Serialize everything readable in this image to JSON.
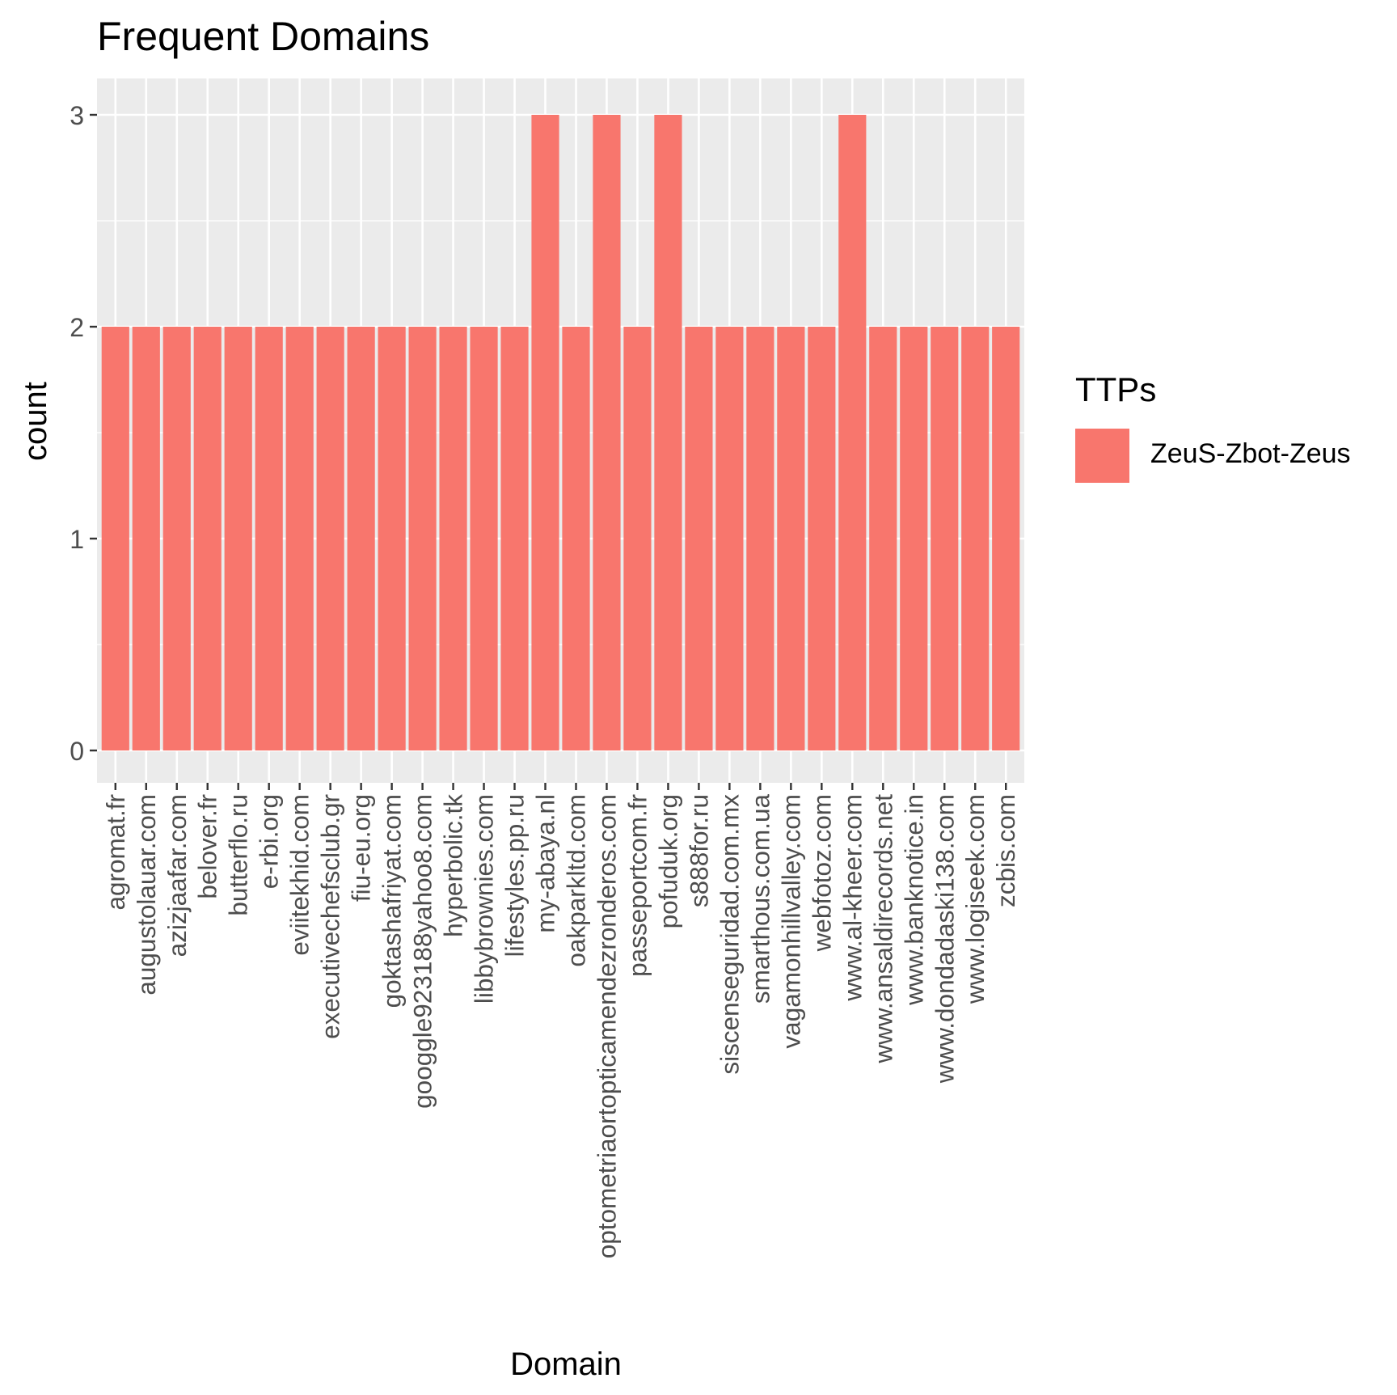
{
  "chart_data": {
    "type": "bar",
    "title": "Frequent Domains",
    "xlabel": "Domain",
    "ylabel": "count",
    "ylim": [
      0,
      3
    ],
    "yticks": [
      0,
      1,
      2,
      3
    ],
    "grid": true,
    "legend": {
      "title": "TTPs",
      "placement": "right",
      "entries": [
        "ZeuS-Zbot-Zeus"
      ]
    },
    "colors": {
      "bar": "#F8766D",
      "panel": "#EBEBEB",
      "grid": "#FFFFFF",
      "tick": "#333333",
      "tick_label": "#4D4D4D"
    },
    "categories": [
      "agromat.fr",
      "augustolauar.com",
      "azizjaafar.com",
      "belover.fr",
      "butterflo.ru",
      "e-rbi.org",
      "eviitekhid.com",
      "executivechefsclub.gr",
      "fiu-eu.org",
      "goktashafriyat.com",
      "googgle923188yahoo8.com",
      "hyperbolic.tk",
      "libbybrownies.com",
      "lifestyles.pp.ru",
      "my-abaya.nl",
      "oakparkltd.com",
      "optometriaortopticamendezronderos.com",
      "passeportcom.fr",
      "pofuduk.org",
      "s888for.ru",
      "siscenseguridad.com.mx",
      "smarthous.com.ua",
      "vagamonhillvalley.com",
      "webfotoz.com",
      "www.al-kheer.com",
      "www.ansaldirecords.net",
      "www.banknotice.in",
      "www.dondadaski138.com",
      "www.logiseek.com",
      "zcbis.com"
    ],
    "series": [
      {
        "name": "ZeuS-Zbot-Zeus",
        "values": [
          2,
          2,
          2,
          2,
          2,
          2,
          2,
          2,
          2,
          2,
          2,
          2,
          2,
          2,
          3,
          2,
          3,
          2,
          3,
          2,
          2,
          2,
          2,
          2,
          3,
          2,
          2,
          2,
          2,
          2
        ]
      }
    ]
  }
}
